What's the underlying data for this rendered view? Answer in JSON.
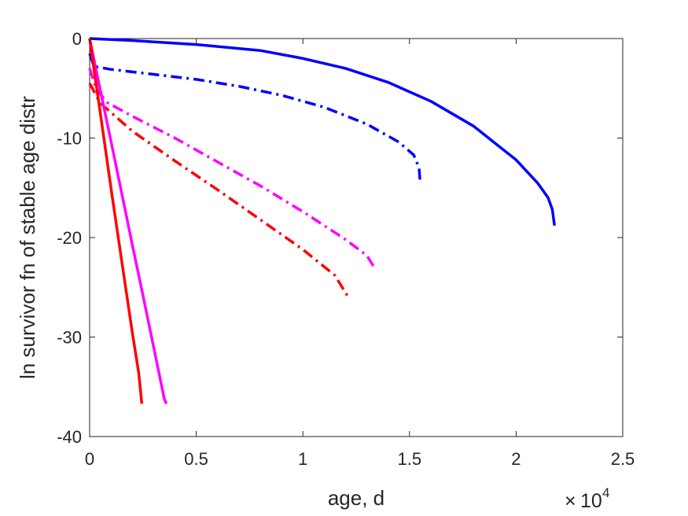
{
  "chart_data": {
    "type": "line",
    "title": "",
    "xlabel": "age, d",
    "ylabel": "ln survivor fn of stable age distr",
    "x_exponent": {
      "base": "10",
      "power": "4",
      "multiplier": "×"
    },
    "xlim": [
      0,
      25000
    ],
    "ylim": [
      -40,
      0
    ],
    "xticks": [
      0,
      5000,
      10000,
      15000,
      20000,
      25000
    ],
    "xtick_labels": [
      "0",
      "0.5",
      "1",
      "1.5",
      "2",
      "2.5"
    ],
    "yticks": [
      0,
      -10,
      -20,
      -30,
      -40
    ],
    "ytick_labels": [
      "0",
      "-10",
      "-20",
      "-30",
      "-40"
    ],
    "grid": false,
    "legend": "none",
    "series": [
      {
        "color": "#0000ff",
        "style": "solid",
        "points": [
          [
            0,
            0
          ],
          [
            2000,
            -0.2
          ],
          [
            5000,
            -0.6
          ],
          [
            8000,
            -1.2
          ],
          [
            10000,
            -2.0
          ],
          [
            12000,
            -3.0
          ],
          [
            14000,
            -4.4
          ],
          [
            16000,
            -6.3
          ],
          [
            18000,
            -8.8
          ],
          [
            20000,
            -12.2
          ],
          [
            21000,
            -14.5
          ],
          [
            21500,
            -16.0
          ],
          [
            21700,
            -17.2
          ],
          [
            21800,
            -18.8
          ]
        ]
      },
      {
        "color": "#0000ff",
        "style": "dashdot",
        "points": [
          [
            0,
            -1.5
          ],
          [
            200,
            -2.8
          ],
          [
            1000,
            -3.1
          ],
          [
            3000,
            -3.6
          ],
          [
            5000,
            -4.1
          ],
          [
            7000,
            -4.8
          ],
          [
            9000,
            -5.7
          ],
          [
            11000,
            -6.9
          ],
          [
            13000,
            -8.6
          ],
          [
            14500,
            -10.4
          ],
          [
            15200,
            -11.7
          ],
          [
            15450,
            -13.0
          ],
          [
            15500,
            -14.5
          ]
        ]
      },
      {
        "color": "#ff00ff",
        "style": "dashdot",
        "points": [
          [
            0,
            -3.0
          ],
          [
            300,
            -5.0
          ],
          [
            800,
            -6.4
          ],
          [
            2000,
            -7.8
          ],
          [
            4000,
            -10.0
          ],
          [
            6000,
            -12.4
          ],
          [
            8000,
            -14.8
          ],
          [
            10000,
            -17.4
          ],
          [
            12000,
            -20.2
          ],
          [
            13000,
            -21.8
          ],
          [
            13400,
            -23.2
          ]
        ]
      },
      {
        "color": "#ff0000",
        "style": "dashdot",
        "points": [
          [
            0,
            -4.5
          ],
          [
            500,
            -6.5
          ],
          [
            2000,
            -9.3
          ],
          [
            4000,
            -12.3
          ],
          [
            6000,
            -15.2
          ],
          [
            8000,
            -18.2
          ],
          [
            10000,
            -21.2
          ],
          [
            11500,
            -23.8
          ],
          [
            12100,
            -25.9
          ]
        ]
      },
      {
        "color": "#ff00ff",
        "style": "solid",
        "points": [
          [
            0,
            0
          ],
          [
            500,
            -5.2
          ],
          [
            1000,
            -10.3
          ],
          [
            1500,
            -15.5
          ],
          [
            2000,
            -20.7
          ],
          [
            2500,
            -25.8
          ],
          [
            3000,
            -31.0
          ],
          [
            3500,
            -36.2
          ],
          [
            3600,
            -36.7
          ]
        ]
      },
      {
        "color": "#ff0000",
        "style": "solid",
        "points": [
          [
            0,
            0
          ],
          [
            500,
            -7.5
          ],
          [
            1000,
            -15.0
          ],
          [
            1500,
            -22.3
          ],
          [
            2000,
            -29.5
          ],
          [
            2300,
            -33.6
          ],
          [
            2450,
            -36.7
          ]
        ]
      }
    ]
  }
}
